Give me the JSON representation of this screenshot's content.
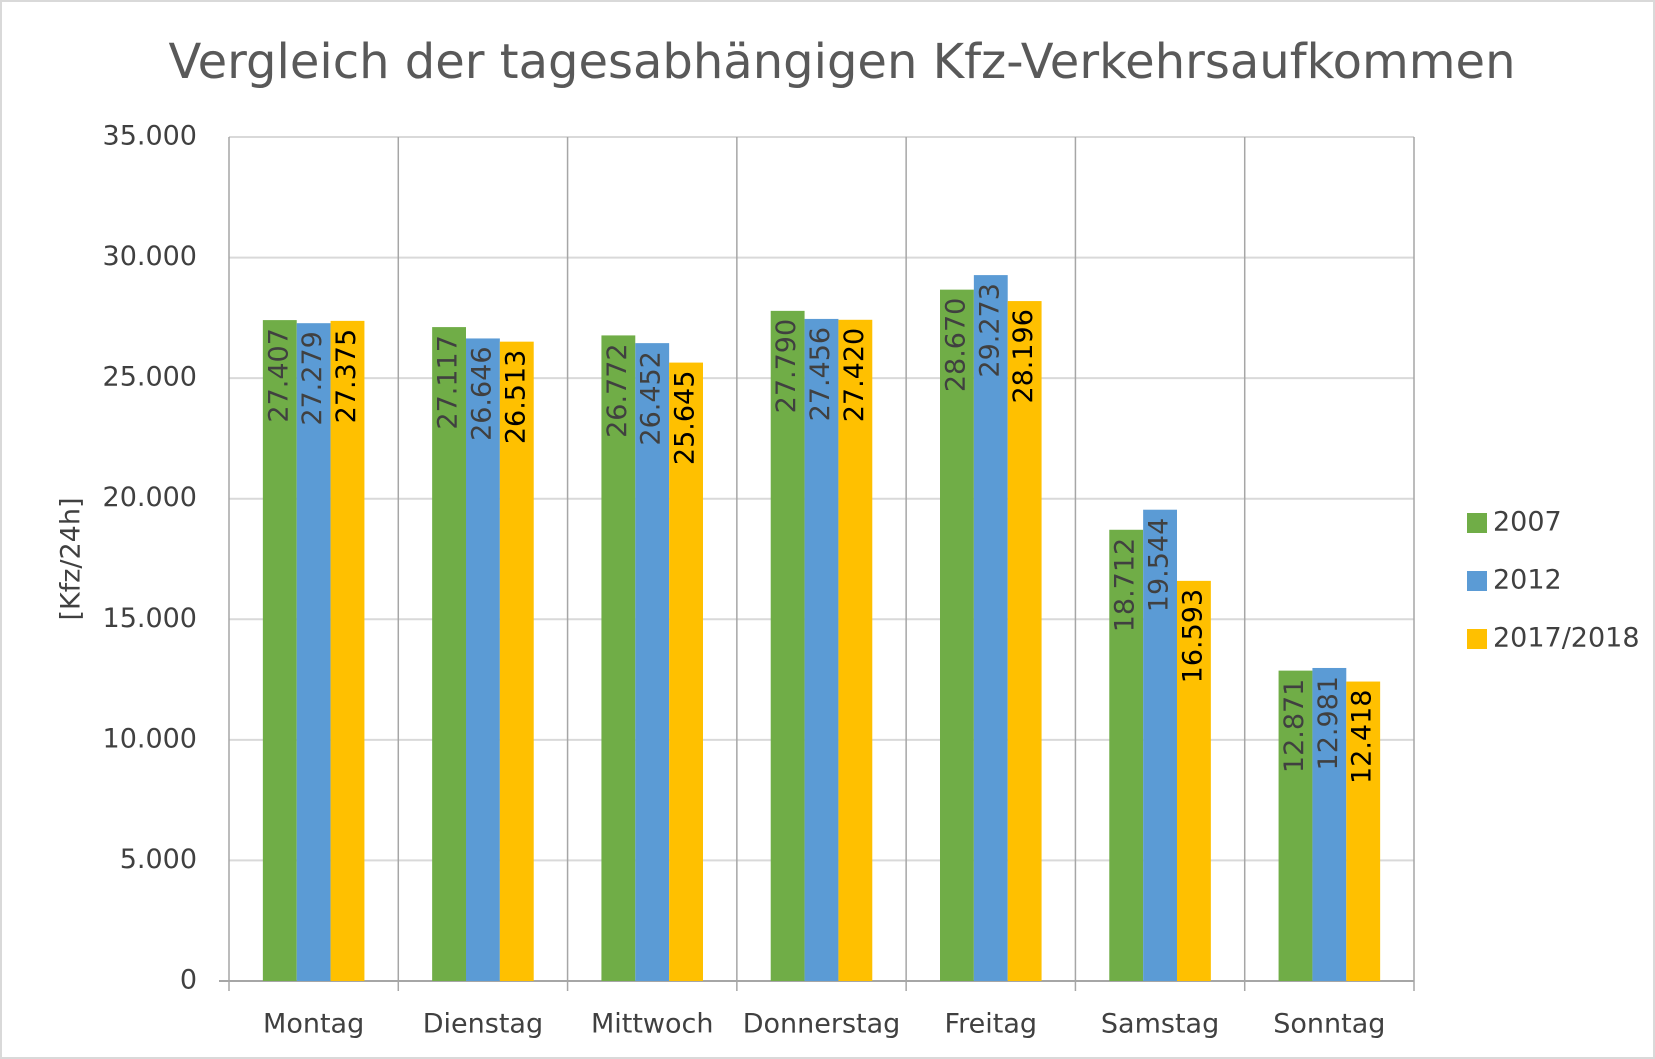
{
  "chart_data": {
    "type": "bar",
    "title": "Vergleich der tagesabhängigen Kfz-Verkehrsaufkommen",
    "y_label": "[Kfz/24h]",
    "categories": [
      "Montag",
      "Dienstag",
      "Mittwoch",
      "Donnerstag",
      "Freitag",
      "Samstag",
      "Sonntag"
    ],
    "series": [
      {
        "name": "2007",
        "color": "#70ad47",
        "label_color": "#404040",
        "values": [
          27407,
          27117,
          26772,
          27790,
          28670,
          18712,
          12871
        ],
        "value_labels": [
          "27.407",
          "27.117",
          "26.772",
          "27.790",
          "28.670",
          "18.712",
          "12.871"
        ]
      },
      {
        "name": "2012",
        "color": "#5b9bd5",
        "label_color": "#404040",
        "values": [
          27279,
          26646,
          26452,
          27456,
          29273,
          19544,
          12981
        ],
        "value_labels": [
          "27.279",
          "26.646",
          "26.452",
          "27.456",
          "29.273",
          "19.544",
          "12.981"
        ]
      },
      {
        "name": "2017/2018",
        "color": "#ffc000",
        "label_color": "#000000",
        "values": [
          27375,
          26513,
          25645,
          27420,
          28196,
          16593,
          12418
        ],
        "value_labels": [
          "27.375",
          "26.513",
          "25.645",
          "27.420",
          "28.196",
          "16.593",
          "12.418"
        ]
      }
    ],
    "ylim": [
      0,
      35000
    ],
    "yticks": [
      0,
      {
        "value": 5000,
        "label": "5.000"
      },
      {
        "value": 10000,
        "label": "10.000"
      },
      {
        "value": 15000,
        "label": "15.000"
      },
      {
        "value": 20000,
        "label": "20.000"
      },
      {
        "value": 25000,
        "label": "25.000"
      },
      {
        "value": 30000,
        "label": "30.000"
      },
      {
        "value": 35000,
        "label": "35.000"
      }
    ],
    "grid": true,
    "legend": "right"
  }
}
